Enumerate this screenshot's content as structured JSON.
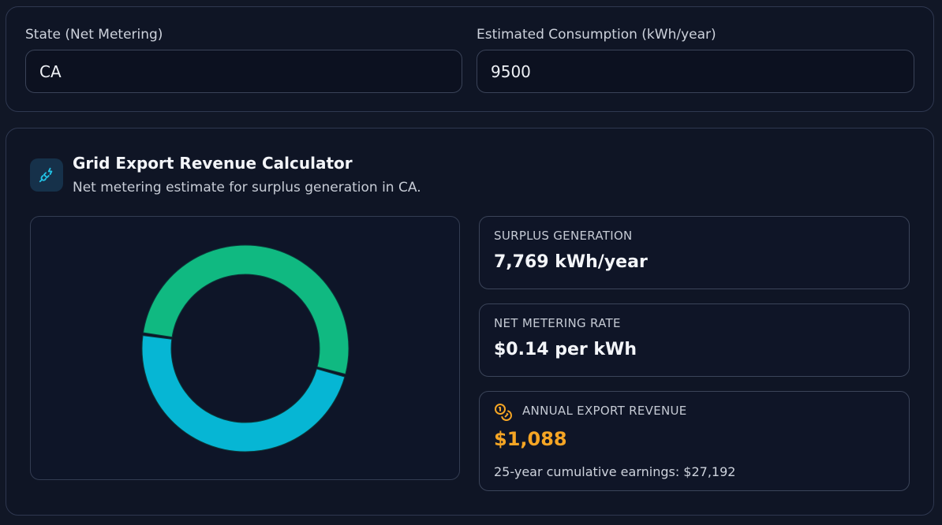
{
  "inputs": {
    "state": {
      "label": "State (Net Metering)",
      "value": "CA"
    },
    "consumption": {
      "label": "Estimated Consumption (kWh/year)",
      "value": "9500"
    }
  },
  "calculator": {
    "icon": "plug-icon",
    "title": "Grid Export Revenue Calculator",
    "subtitle": "Net metering estimate for surplus generation in CA."
  },
  "stats": {
    "surplus": {
      "label": "SURPLUS GENERATION",
      "value": "7,769 kWh/year"
    },
    "rate": {
      "label": "NET METERING RATE",
      "value": "$0.14 per kWh"
    },
    "revenue": {
      "icon": "coins-icon",
      "label": "ANNUAL EXPORT REVENUE",
      "value": "$1,088",
      "note": "25-year cumulative earnings: $27,192",
      "color": "#f5a524"
    }
  },
  "chart_data": {
    "type": "pie",
    "variant": "donut",
    "values": [
      52,
      48
    ],
    "colors": [
      "#10b981",
      "#06b6d4"
    ],
    "start_angle_deg": 188
  }
}
